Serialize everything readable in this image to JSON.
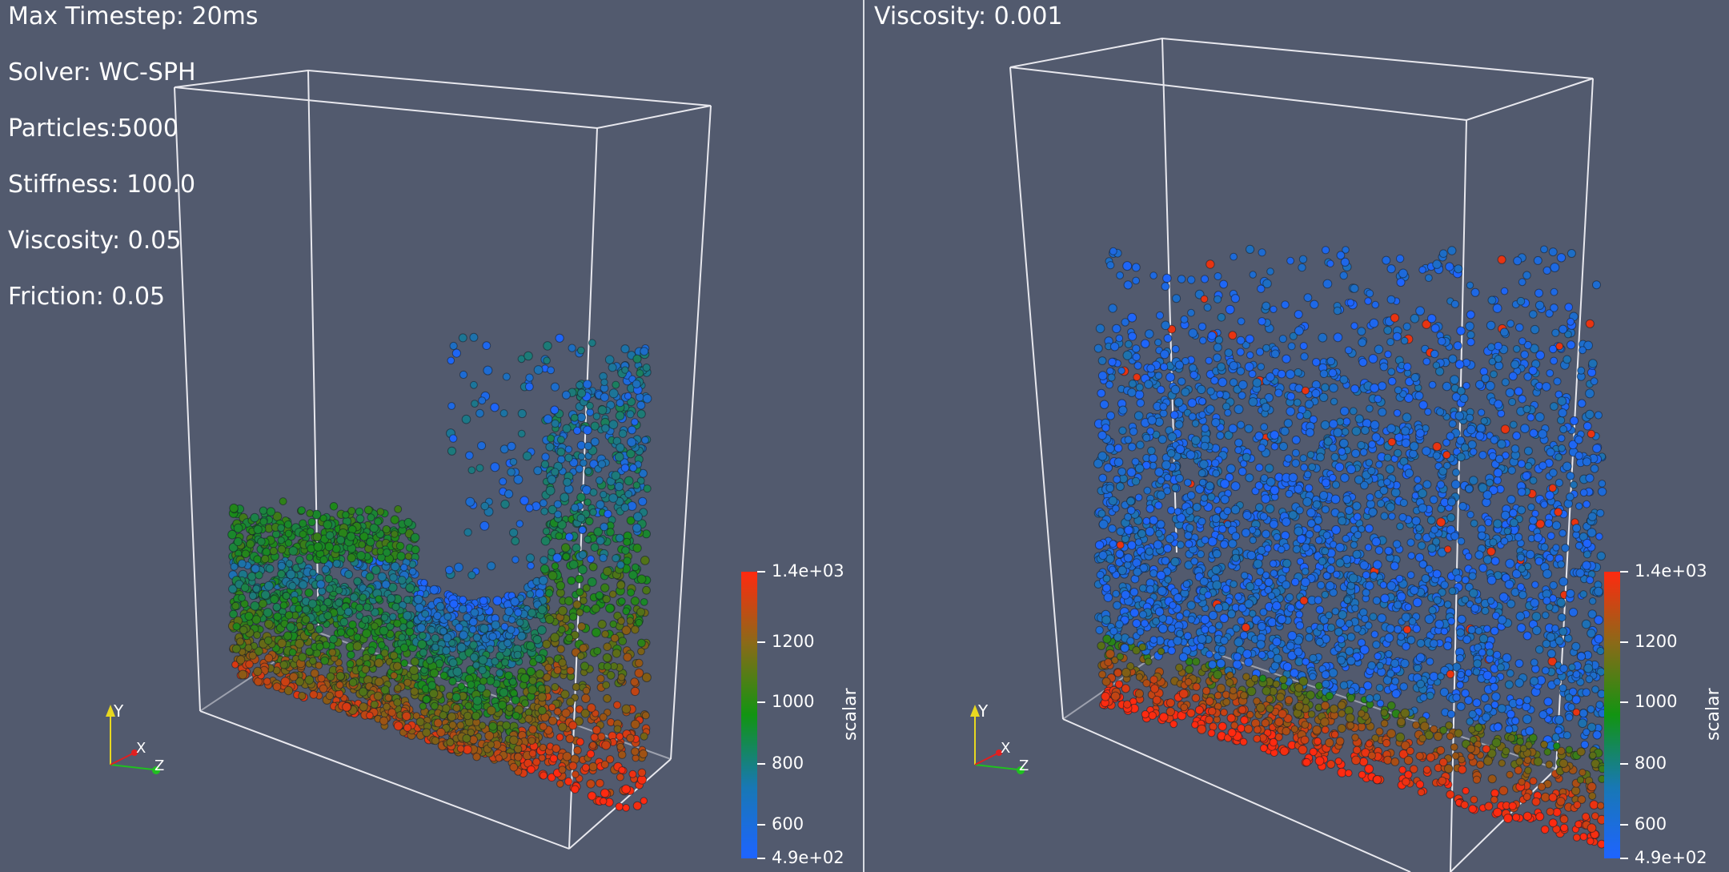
{
  "views": [
    {
      "info_lines": [
        "Max Timestep: 20ms",
        "Solver: WC-SPH",
        "Particles:5000",
        "Stiffness: 100.0",
        "Viscosity: 0.05",
        "Friction: 0.05"
      ],
      "colorbar": {
        "title": "scalar",
        "ticks": [
          "1.4e+03",
          "1200",
          "1000",
          "800",
          "600",
          "4.9e+02"
        ]
      },
      "axes": {
        "y": "Y",
        "x": "X",
        "z": "Z"
      }
    },
    {
      "info_lines": [
        "Viscosity: 0.001"
      ],
      "colorbar": {
        "title": "scalar",
        "ticks": [
          "1.4e+03",
          "1200",
          "1000",
          "800",
          "600",
          "4.9e+02"
        ]
      },
      "axes": {
        "y": "Y",
        "x": "X",
        "z": "Z"
      }
    }
  ],
  "colormap": {
    "low": "#1e64ff",
    "mid": "#1a8a1a",
    "high": "#ff2a10"
  }
}
